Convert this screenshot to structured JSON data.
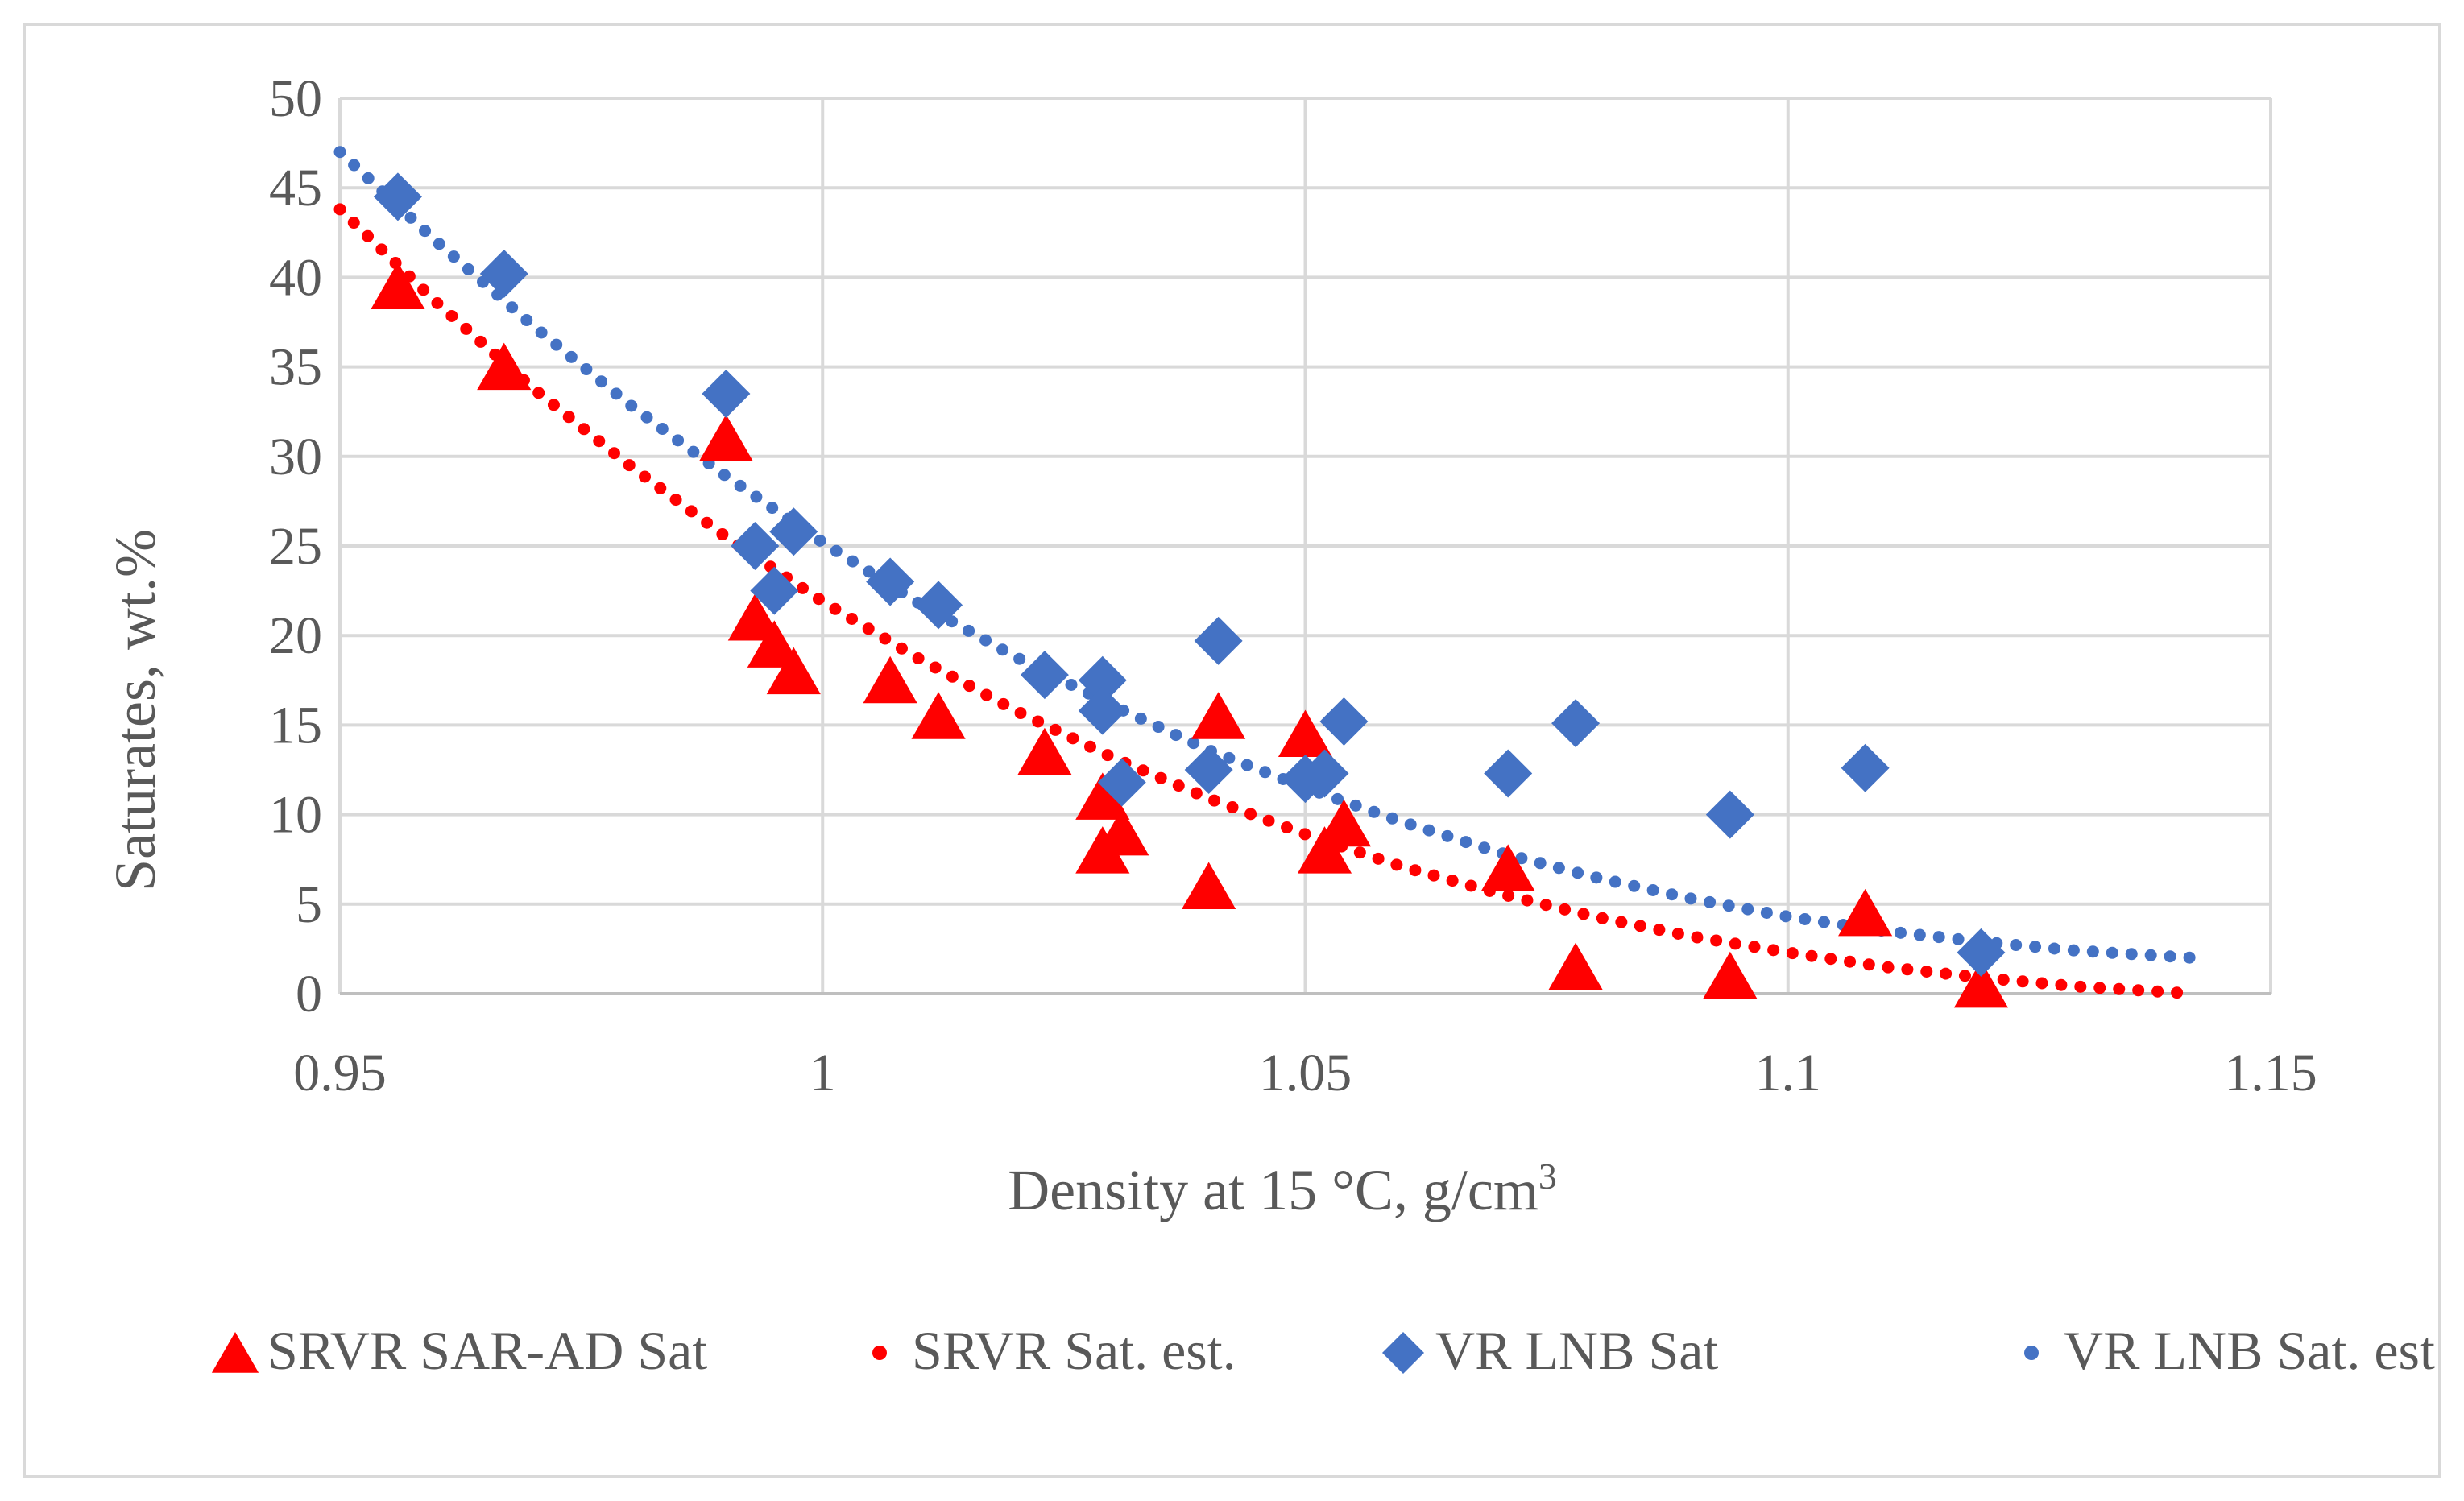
{
  "chart_data": {
    "type": "scatter",
    "title": "",
    "xlabel": "Density at 15 °C, g/cm",
    "xlabel_superscript": "3",
    "ylabel": "Saturates, wt.%",
    "xlim": [
      0.95,
      1.15
    ],
    "ylim": [
      0,
      50
    ],
    "x_ticks": [
      "0.95",
      "1",
      "1.05",
      "1.1",
      "1.15"
    ],
    "y_ticks": [
      "0",
      "5",
      "10",
      "15",
      "20",
      "25",
      "30",
      "35",
      "40",
      "45",
      "50"
    ],
    "grid": true,
    "legend_position": "bottom",
    "series": [
      {
        "name": "SRVR SAR-AD Sat",
        "kind": "markers",
        "marker": "triangle",
        "color": "#ff0000",
        "points": [
          [
            0.956,
            39.5
          ],
          [
            0.967,
            35.0
          ],
          [
            0.99,
            31.0
          ],
          [
            0.993,
            21.0
          ],
          [
            0.995,
            19.5
          ],
          [
            0.997,
            18.0
          ],
          [
            1.007,
            17.5
          ],
          [
            1.012,
            15.5
          ],
          [
            1.023,
            13.5
          ],
          [
            1.029,
            11.0
          ],
          [
            1.029,
            8.0
          ],
          [
            1.031,
            9.0
          ],
          [
            1.04,
            6.0
          ],
          [
            1.041,
            15.5
          ],
          [
            1.05,
            14.5
          ],
          [
            1.052,
            8.0
          ],
          [
            1.054,
            9.5
          ],
          [
            1.071,
            7.0
          ],
          [
            1.078,
            1.5
          ],
          [
            1.094,
            1.0
          ],
          [
            1.108,
            4.5
          ],
          [
            1.12,
            0.5
          ]
        ]
      },
      {
        "name": "SRVR Sat. est.",
        "kind": "dotted-trend",
        "color": "#ff0000",
        "points": [
          [
            0.95,
            43.8
          ],
          [
            0.96,
            38.6
          ],
          [
            0.97,
            33.8
          ],
          [
            0.98,
            29.5
          ],
          [
            0.99,
            25.5
          ],
          [
            1.0,
            21.9
          ],
          [
            1.01,
            18.7
          ],
          [
            1.02,
            15.8
          ],
          [
            1.03,
            13.2
          ],
          [
            1.04,
            10.9
          ],
          [
            1.05,
            8.9
          ],
          [
            1.06,
            7.1
          ],
          [
            1.07,
            5.6
          ],
          [
            1.08,
            4.3
          ],
          [
            1.09,
            3.2
          ],
          [
            1.1,
            2.3
          ],
          [
            1.11,
            1.5
          ],
          [
            1.12,
            0.9
          ],
          [
            1.13,
            0.4
          ],
          [
            1.142,
            0.0
          ]
        ]
      },
      {
        "name": "VR LNB Sat",
        "kind": "markers",
        "marker": "diamond",
        "color": "#4472c4",
        "points": [
          [
            0.956,
            44.5
          ],
          [
            0.967,
            40.2
          ],
          [
            0.99,
            33.5
          ],
          [
            0.993,
            25.0
          ],
          [
            0.995,
            22.5
          ],
          [
            0.997,
            25.8
          ],
          [
            1.007,
            23.0
          ],
          [
            1.012,
            21.7
          ],
          [
            1.023,
            17.8
          ],
          [
            1.029,
            17.5
          ],
          [
            1.029,
            15.8
          ],
          [
            1.031,
            11.8
          ],
          [
            1.04,
            12.5
          ],
          [
            1.041,
            19.7
          ],
          [
            1.05,
            12.0
          ],
          [
            1.052,
            12.3
          ],
          [
            1.054,
            15.2
          ],
          [
            1.071,
            12.3
          ],
          [
            1.078,
            15.1
          ],
          [
            1.094,
            10.0
          ],
          [
            1.108,
            12.6
          ],
          [
            1.12,
            2.3
          ]
        ]
      },
      {
        "name": "VR LNB Sat. est",
        "kind": "dotted-trend",
        "color": "#4472c4",
        "points": [
          [
            0.95,
            47.0
          ],
          [
            0.96,
            42.0
          ],
          [
            0.97,
            37.3
          ],
          [
            0.98,
            32.9
          ],
          [
            0.99,
            28.9
          ],
          [
            1.0,
            25.2
          ],
          [
            1.01,
            21.8
          ],
          [
            1.02,
            18.8
          ],
          [
            1.03,
            16.1
          ],
          [
            1.04,
            13.6
          ],
          [
            1.05,
            11.5
          ],
          [
            1.06,
            9.6
          ],
          [
            1.07,
            7.9
          ],
          [
            1.08,
            6.5
          ],
          [
            1.09,
            5.3
          ],
          [
            1.1,
            4.3
          ],
          [
            1.11,
            3.5
          ],
          [
            1.12,
            2.9
          ],
          [
            1.13,
            2.4
          ],
          [
            1.142,
            2.0
          ]
        ]
      }
    ]
  }
}
